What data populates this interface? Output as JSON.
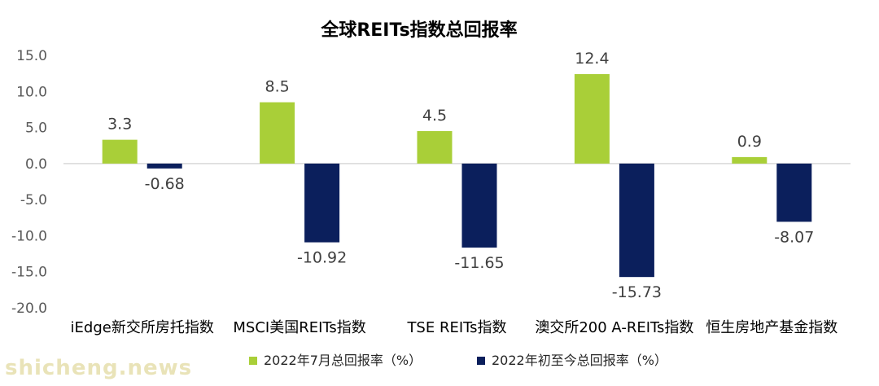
{
  "watermark": "shicheng.news",
  "chart_data": {
    "type": "bar",
    "title": "全球REITs指数总回报率",
    "categories": [
      "iEdge新交所房托指数",
      "MSCI美国REITs指数",
      "TSE REITs指数",
      "澳交所200 A-REITs指数",
      "恒生房地产基金指数"
    ],
    "series": [
      {
        "name": "2022年7月总回报率（%）",
        "values": [
          3.3,
          8.5,
          4.5,
          12.4,
          0.9
        ],
        "labels": [
          "3.3",
          "8.5",
          "4.5",
          "12.4",
          "0.9"
        ],
        "color": "#a9cf38"
      },
      {
        "name": "2022年初至今总回报率（%）",
        "values": [
          -0.68,
          -10.92,
          -11.65,
          -15.73,
          -8.07
        ],
        "labels": [
          "-0.68",
          "-10.92",
          "-11.65",
          "-15.73",
          "-8.07"
        ],
        "color": "#0b1f5c"
      }
    ],
    "yticks": [
      "15.0",
      "10.0",
      "5.0",
      "0.0",
      "-5.0",
      "-10.0",
      "-15.0",
      "-20.0"
    ],
    "ylim": [
      -20,
      15
    ],
    "legend_position": "bottom",
    "grid": false
  }
}
